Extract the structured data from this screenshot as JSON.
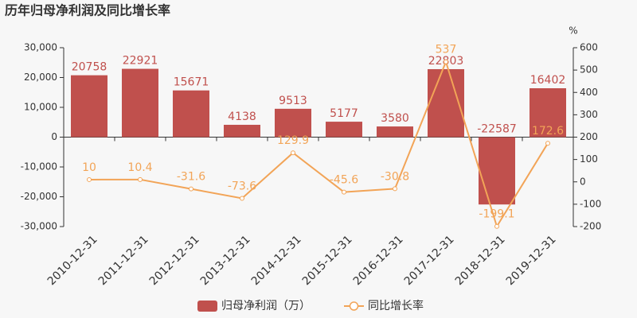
{
  "chart_data": {
    "type": "bar-line",
    "title": "历年归母净利润及同比增长率",
    "categories": [
      "2010-12-31",
      "2011-12-31",
      "2012-12-31",
      "2013-12-31",
      "2014-12-31",
      "2015-12-31",
      "2016-12-31",
      "2017-12-31",
      "2018-12-31",
      "2019-12-31"
    ],
    "series": [
      {
        "name": "归母净利润（万）",
        "type": "bar",
        "color": "#c0504d",
        "values": [
          20758,
          22921,
          15671,
          4138,
          9513,
          5177,
          3580,
          22803,
          -22587,
          16402
        ]
      },
      {
        "name": "同比增长率",
        "type": "line",
        "axis": "y2",
        "color": "#f2a457",
        "values": [
          10,
          10.4,
          -31.6,
          -73.6,
          129.9,
          -45.6,
          -30.8,
          537,
          -199.1,
          172.6
        ]
      }
    ],
    "ylim": [
      -30000,
      30000
    ],
    "yticks": [
      {
        "value": -30000,
        "label": "-30,000"
      },
      {
        "value": -20000,
        "label": "-20,000"
      },
      {
        "value": -10000,
        "label": "-10,000"
      },
      0,
      {
        "value": 10000,
        "label": "10,000"
      },
      {
        "value": 20000,
        "label": "20,000"
      },
      {
        "value": 30000,
        "label": "30,000"
      }
    ],
    "y2lim": [
      -200,
      600
    ],
    "y2ticks": [
      -200,
      -100,
      0,
      100,
      200,
      300,
      400,
      500,
      600
    ],
    "y2label": "%",
    "grid": false
  }
}
